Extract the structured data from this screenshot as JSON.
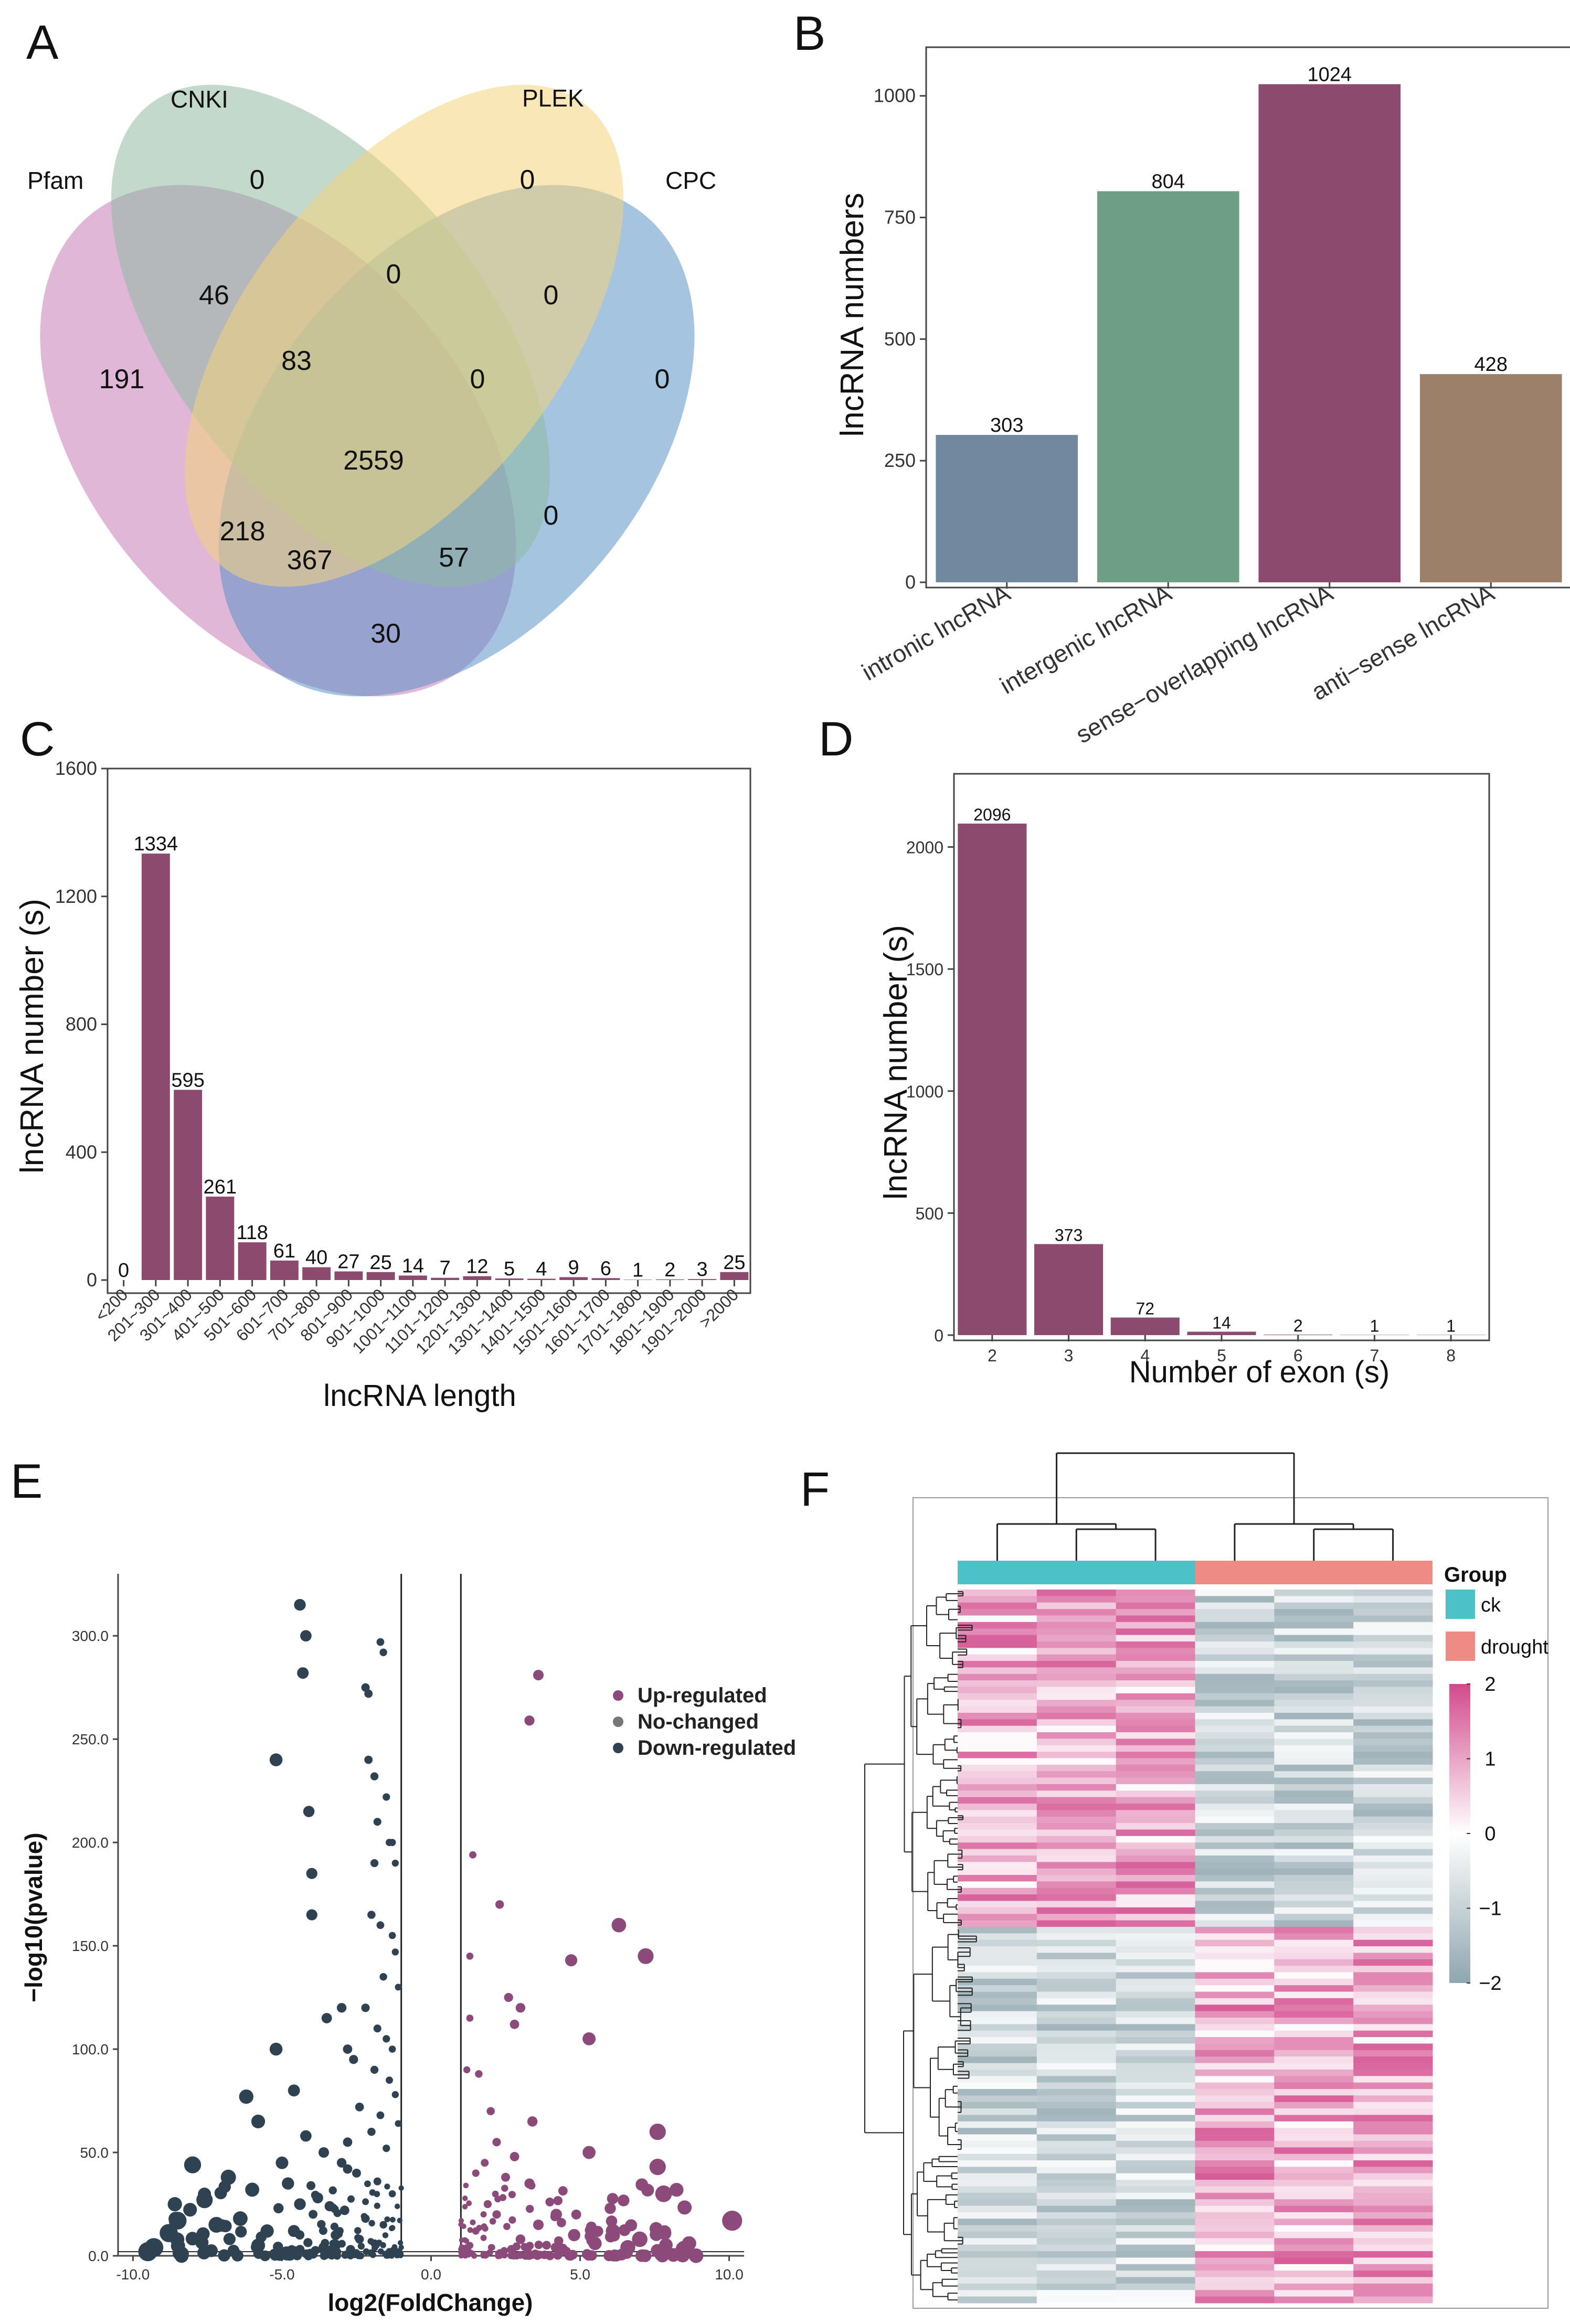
{
  "panel_letters": [
    "A",
    "B",
    "C",
    "D",
    "E",
    "F"
  ],
  "chart_data": [
    {
      "panel": "A",
      "type": "venn",
      "sets": [
        "Pfam",
        "CNKI",
        "PLEK",
        "CPC"
      ],
      "colors": {
        "Pfam": "#c77cb6",
        "CNKI": "#8fb9a3",
        "PLEK": "#f4d47c",
        "CPC": "#5b93c6"
      },
      "regions": [
        {
          "label": "Pfam only",
          "value": "191"
        },
        {
          "label": "CNKI only",
          "value": "0"
        },
        {
          "label": "PLEK only",
          "value": "0"
        },
        {
          "label": "CPC only",
          "value": "0"
        },
        {
          "label": "Pfam∩CNKI",
          "value": "46"
        },
        {
          "label": "CNKI∩PLEK",
          "value": "0"
        },
        {
          "label": "PLEK∩CPC",
          "value": "0"
        },
        {
          "label": "Pfam∩CNKI∩PLEK",
          "value": "83"
        },
        {
          "label": "CNKI∩PLEK∩CPC",
          "value": "0"
        },
        {
          "label": "all four",
          "value": "2559"
        },
        {
          "label": "Pfam∩PLEK",
          "value": "218"
        },
        {
          "label": "Pfam∩PLEK∩CPC",
          "value": "367"
        },
        {
          "label": "Pfam∩CNKI∩CPC",
          "value": "57"
        },
        {
          "label": "CNKI∩CPC",
          "value": "0"
        },
        {
          "label": "Pfam∩CPC",
          "value": "30"
        }
      ]
    },
    {
      "panel": "B",
      "type": "bar",
      "categories": [
        "intronic lncRNA",
        "intergenic lncRNA",
        "sense−overlapping lncRNA",
        "anti−sense lncRNA"
      ],
      "values": [
        303,
        804,
        1024,
        428
      ],
      "colors": [
        "#71889e",
        "#6e9e86",
        "#8b4a6e",
        "#9c806a"
      ],
      "ylabel": "lncRNA numbers",
      "ylim": [
        0,
        1100
      ],
      "yticks": [
        "0",
        "250",
        "500",
        "750",
        "1000"
      ],
      "ytick_values": [
        0,
        250,
        500,
        750,
        1000
      ]
    },
    {
      "panel": "C",
      "type": "bar",
      "categories": [
        "<200",
        "201~300",
        "301~400",
        "401~500",
        "501~600",
        "601~700",
        "701~800",
        "801~900",
        "901~1000",
        "1001~1100",
        "1101~1200",
        "1201~1300",
        "1301~1400",
        "1401~1500",
        "1501~1600",
        "1601~1700",
        "1701~1800",
        "1801~1900",
        "1901~2000",
        ">2000"
      ],
      "values": [
        0,
        1334,
        595,
        261,
        118,
        61,
        40,
        27,
        25,
        14,
        7,
        12,
        5,
        4,
        9,
        6,
        1,
        2,
        3,
        25
      ],
      "color": "#8b4a6e",
      "xlabel": "lncRNA length",
      "ylabel": "lncRNA number (s)",
      "ylim": [
        0,
        1600
      ],
      "yticks": [
        "0",
        "400",
        "800",
        "1200",
        "1600"
      ],
      "ytick_values": [
        0,
        400,
        800,
        1200,
        1600
      ]
    },
    {
      "panel": "D",
      "type": "bar",
      "categories": [
        "2",
        "3",
        "4",
        "5",
        "6",
        "7",
        "8"
      ],
      "values": [
        2096,
        373,
        72,
        14,
        2,
        1,
        1
      ],
      "color": "#8b4a6e",
      "xlabel": "Number of exon (s)",
      "ylabel": "lncRNA number (s)",
      "ylim": [
        0,
        2300
      ],
      "yticks": [
        "0",
        "500",
        "1000",
        "1500",
        "2000"
      ],
      "ytick_values": [
        0,
        500,
        1000,
        1500,
        2000
      ]
    },
    {
      "panel": "E",
      "type": "scatter",
      "xlabel": "log2(FoldChange)",
      "ylabel": "−log10(pvalue)",
      "xlim": [
        -10.5,
        10.5
      ],
      "ylim": [
        0,
        330
      ],
      "xticks": [
        "-10.0",
        "-5.0",
        "0.0",
        "5.0",
        "10.0"
      ],
      "xtick_values": [
        -10,
        -5,
        0,
        5,
        10
      ],
      "yticks": [
        "0.0",
        "50.0",
        "100.0",
        "150.0",
        "200.0",
        "250.0",
        "300.0"
      ],
      "ytick_values": [
        0,
        50,
        100,
        150,
        200,
        250,
        300
      ],
      "thresholds_x": [
        -1,
        1
      ],
      "legend": [
        "Up-regulated",
        "No-changed",
        "Down-regulated"
      ],
      "legend_colors": [
        "#8b4a7a",
        "#777777",
        "#2e4252"
      ],
      "down_points": [
        [
          -4.4,
          315
        ],
        [
          -4.2,
          300
        ],
        [
          -4.3,
          282
        ],
        [
          -5.2,
          240
        ],
        [
          -4.1,
          215
        ],
        [
          -4.0,
          185
        ],
        [
          -4.0,
          165
        ],
        [
          -3.0,
          120
        ],
        [
          -3.5,
          115
        ],
        [
          -2.8,
          100
        ],
        [
          -5.2,
          100
        ],
        [
          -4.6,
          80
        ],
        [
          -6.2,
          77
        ],
        [
          -5.8,
          65
        ],
        [
          -4.2,
          58
        ],
        [
          -3.6,
          50
        ],
        [
          -5.0,
          45
        ],
        [
          -8.0,
          44
        ],
        [
          -2.8,
          42
        ],
        [
          -6.8,
          38
        ],
        [
          -4.8,
          35
        ],
        [
          -6.0,
          32
        ],
        [
          -7.6,
          27
        ],
        [
          -4.4,
          25
        ],
        [
          -3.4,
          24
        ],
        [
          -6.4,
          18
        ],
        [
          -8.5,
          17
        ],
        [
          -7.2,
          15
        ],
        [
          -8.8,
          11
        ],
        [
          -5.5,
          12
        ],
        [
          -9.3,
          4
        ],
        [
          -9.5,
          2
        ],
        [
          -2.2,
          275
        ],
        [
          -2.1,
          272
        ],
        [
          -1.7,
          297
        ],
        [
          -1.6,
          292
        ],
        [
          -2.1,
          240
        ],
        [
          -1.9,
          232
        ],
        [
          -1.5,
          222
        ],
        [
          -1.8,
          210
        ],
        [
          -1.4,
          200
        ],
        [
          -1.3,
          200
        ],
        [
          -1.2,
          190
        ],
        [
          -1.9,
          190
        ],
        [
          -2.0,
          165
        ],
        [
          -1.7,
          160
        ],
        [
          -1.3,
          155
        ],
        [
          -1.2,
          147
        ],
        [
          -1.6,
          135
        ],
        [
          -1.1,
          130
        ],
        [
          -2.2,
          120
        ],
        [
          -1.8,
          110
        ],
        [
          -1.5,
          105
        ],
        [
          -1.3,
          100
        ],
        [
          -2.6,
          95
        ],
        [
          -1.9,
          90
        ],
        [
          -1.4,
          85
        ],
        [
          -1.2,
          78
        ],
        [
          -2.4,
          72
        ],
        [
          -1.7,
          68
        ],
        [
          -1.1,
          64
        ],
        [
          -2.0,
          60
        ],
        [
          -2.8,
          55
        ],
        [
          -1.5,
          52
        ],
        [
          -3.0,
          45
        ],
        [
          -2.5,
          40
        ],
        [
          -1.8,
          36
        ],
        [
          -1.3,
          30
        ],
        [
          -3.8,
          28
        ],
        [
          -2.9,
          22
        ],
        [
          -2.2,
          18
        ],
        [
          -1.6,
          15
        ],
        [
          -4.6,
          12
        ],
        [
          -3.2,
          10
        ],
        [
          -2.4,
          8
        ],
        [
          -1.9,
          6
        ],
        [
          -5.8,
          5
        ],
        [
          -3.6,
          4
        ],
        [
          -2.7,
          3
        ],
        [
          -1.4,
          2
        ]
      ],
      "up_points": [
        [
          3.6,
          281
        ],
        [
          3.3,
          259
        ],
        [
          1.4,
          194
        ],
        [
          2.3,
          170
        ],
        [
          6.3,
          160
        ],
        [
          4.7,
          143
        ],
        [
          7.2,
          145
        ],
        [
          1.3,
          145
        ],
        [
          2.6,
          125
        ],
        [
          1.3,
          115
        ],
        [
          3.0,
          120
        ],
        [
          2.8,
          112
        ],
        [
          5.3,
          105
        ],
        [
          1.2,
          90
        ],
        [
          1.6,
          88
        ],
        [
          2.0,
          70
        ],
        [
          3.4,
          65
        ],
        [
          7.6,
          60
        ],
        [
          2.2,
          55
        ],
        [
          2.8,
          48
        ],
        [
          5.3,
          50
        ],
        [
          1.8,
          45
        ],
        [
          1.5,
          40
        ],
        [
          7.6,
          43
        ],
        [
          2.5,
          38
        ],
        [
          3.3,
          35
        ],
        [
          7.8,
          30
        ],
        [
          1.9,
          25
        ],
        [
          4.2,
          20
        ],
        [
          10.1,
          17
        ],
        [
          6.1,
          12
        ],
        [
          7.0,
          8
        ],
        [
          4.8,
          10
        ],
        [
          3.6,
          15
        ],
        [
          2.2,
          20
        ],
        [
          1.5,
          12
        ],
        [
          5.5,
          6
        ],
        [
          1.3,
          5
        ],
        [
          2.7,
          3
        ],
        [
          6.6,
          4
        ],
        [
          8.5,
          3
        ],
        [
          3.0,
          8
        ]
      ]
    },
    {
      "panel": "F",
      "type": "heatmap",
      "groups": [
        "ck",
        "drought"
      ],
      "group_colors": [
        "#4dc0c8",
        "#ee8b85"
      ],
      "legend_title": "Group",
      "scale_ticks": [
        "2",
        "1",
        "0",
        "−1",
        "−2"
      ],
      "scale_values": [
        2,
        1,
        0,
        -1,
        -2
      ],
      "colors": {
        "high": "#d24a8c",
        "mid": "#ffffff",
        "low": "#8fa6ae"
      },
      "columns": 6
    }
  ]
}
